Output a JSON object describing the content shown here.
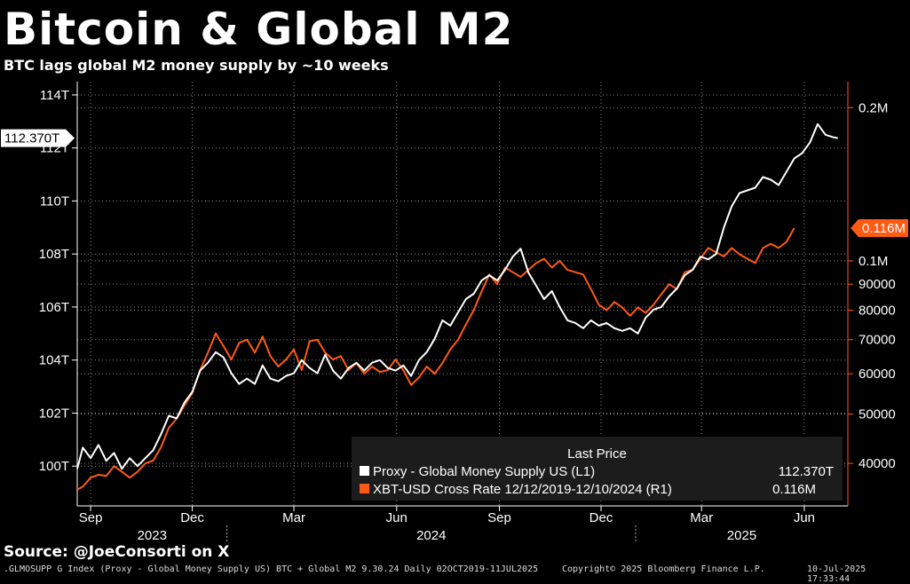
{
  "header": {
    "title": "Bitcoin & Global M2",
    "subtitle": "BTC lags global M2 money supply by ~10 weeks"
  },
  "footer": {
    "source": "Source:  @JoeConsorti on X",
    "index_line": ".GLMOSUPP G Index (Proxy - Global Money Supply US) BTC + Global M2 9.30.24  Daily 02OCT2019-11JUL2025",
    "copyright": "Copyright© 2025 Bloomberg Finance L.P.",
    "timestamp": "10-Jul-2025 17:33:44"
  },
  "colors": {
    "m2": "#ffffff",
    "btc": "#ff5a14",
    "background": "#000000",
    "legend_bg": "#1c1c1c"
  },
  "chart_data": {
    "type": "line",
    "x_tick_labels": [
      "Sep",
      "Dec",
      "Mar",
      "Jun",
      "Sep",
      "Dec",
      "Mar",
      "Jun"
    ],
    "x_tick_dates": [
      "2023-09-01",
      "2023-12-01",
      "2024-03-01",
      "2024-06-01",
      "2024-09-01",
      "2024-12-01",
      "2025-03-01",
      "2025-06-01"
    ],
    "x_year_labels": [
      "2023",
      "2024",
      "2025"
    ],
    "x_range": [
      "2023-08-20",
      "2025-07-10"
    ],
    "y_left": {
      "range": [
        98.5,
        114.5
      ],
      "ticks": [
        100,
        102,
        104,
        106,
        108,
        110,
        112,
        114
      ],
      "tick_labels": [
        "100T",
        "102T",
        "104T",
        "106T",
        "108T",
        "110T",
        "112T",
        "114T"
      ],
      "last_value_label": "112.370T"
    },
    "y_right": {
      "scale": "log",
      "range": [
        33000,
        225000
      ],
      "ticks": [
        40000,
        50000,
        60000,
        70000,
        80000,
        90000,
        100000,
        200000
      ],
      "tick_labels": [
        "40000",
        "50000",
        "60000",
        "70000",
        "80000",
        "90000",
        "0.1M",
        "0.2M"
      ],
      "last_value_label": "0.116M"
    },
    "grid": true,
    "legend": {
      "placement": "bottom-right",
      "header": "Last Price",
      "entries": [
        {
          "label": "Proxy - Global Money Supply US  (L1)",
          "value": "112.370T"
        },
        {
          "label": "XBT-USD Cross Rate 12/12/2019-12/10/2024   (R1)",
          "value": "0.116M"
        }
      ]
    },
    "series": [
      {
        "name": "Proxy - Global Money Supply US  (L1)",
        "axis": "left",
        "points": [
          [
            "2023-08-20",
            99.9
          ],
          [
            "2023-08-25",
            100.7
          ],
          [
            "2023-09-01",
            100.3
          ],
          [
            "2023-09-08",
            100.8
          ],
          [
            "2023-09-15",
            100.2
          ],
          [
            "2023-09-22",
            100.5
          ],
          [
            "2023-09-29",
            99.9
          ],
          [
            "2023-10-06",
            100.3
          ],
          [
            "2023-10-13",
            100.0
          ],
          [
            "2023-10-20",
            100.3
          ],
          [
            "2023-10-27",
            100.6
          ],
          [
            "2023-11-03",
            101.2
          ],
          [
            "2023-11-10",
            101.9
          ],
          [
            "2023-11-17",
            101.8
          ],
          [
            "2023-11-24",
            102.4
          ],
          [
            "2023-12-01",
            102.8
          ],
          [
            "2023-12-08",
            103.6
          ],
          [
            "2023-12-15",
            103.9
          ],
          [
            "2023-12-22",
            104.3
          ],
          [
            "2023-12-29",
            104.1
          ],
          [
            "2024-01-05",
            103.5
          ],
          [
            "2024-01-12",
            103.1
          ],
          [
            "2024-01-19",
            103.3
          ],
          [
            "2024-01-26",
            103.1
          ],
          [
            "2024-02-02",
            103.8
          ],
          [
            "2024-02-09",
            103.3
          ],
          [
            "2024-02-16",
            103.2
          ],
          [
            "2024-02-23",
            103.4
          ],
          [
            "2024-03-01",
            103.5
          ],
          [
            "2024-03-08",
            104.0
          ],
          [
            "2024-03-15",
            103.7
          ],
          [
            "2024-03-22",
            103.5
          ],
          [
            "2024-03-29",
            104.2
          ],
          [
            "2024-04-05",
            103.6
          ],
          [
            "2024-04-12",
            103.3
          ],
          [
            "2024-04-19",
            103.7
          ],
          [
            "2024-04-26",
            103.9
          ],
          [
            "2024-05-03",
            103.6
          ],
          [
            "2024-05-10",
            103.9
          ],
          [
            "2024-05-17",
            104.0
          ],
          [
            "2024-05-24",
            103.7
          ],
          [
            "2024-05-31",
            103.6
          ],
          [
            "2024-06-07",
            103.8
          ],
          [
            "2024-06-14",
            103.4
          ],
          [
            "2024-06-21",
            104.0
          ],
          [
            "2024-06-28",
            104.3
          ],
          [
            "2024-07-05",
            104.8
          ],
          [
            "2024-07-12",
            105.5
          ],
          [
            "2024-07-19",
            105.3
          ],
          [
            "2024-07-26",
            105.8
          ],
          [
            "2024-08-02",
            106.3
          ],
          [
            "2024-08-09",
            106.5
          ],
          [
            "2024-08-16",
            107.0
          ],
          [
            "2024-08-23",
            107.2
          ],
          [
            "2024-08-30",
            107.0
          ],
          [
            "2024-09-06",
            107.4
          ],
          [
            "2024-09-13",
            107.9
          ],
          [
            "2024-09-20",
            108.2
          ],
          [
            "2024-09-27",
            107.3
          ],
          [
            "2024-10-04",
            106.8
          ],
          [
            "2024-10-11",
            106.3
          ],
          [
            "2024-10-18",
            106.6
          ],
          [
            "2024-10-25",
            106.0
          ],
          [
            "2024-11-01",
            105.5
          ],
          [
            "2024-11-08",
            105.4
          ],
          [
            "2024-11-15",
            105.2
          ],
          [
            "2024-11-22",
            105.5
          ],
          [
            "2024-11-29",
            105.3
          ],
          [
            "2024-12-06",
            105.4
          ],
          [
            "2024-12-13",
            105.2
          ],
          [
            "2024-12-20",
            105.1
          ],
          [
            "2024-12-27",
            105.2
          ],
          [
            "2025-01-03",
            105.0
          ],
          [
            "2025-01-10",
            105.6
          ],
          [
            "2025-01-17",
            105.9
          ],
          [
            "2025-01-24",
            106.0
          ],
          [
            "2025-01-31",
            106.4
          ],
          [
            "2025-02-07",
            106.7
          ],
          [
            "2025-02-14",
            107.2
          ],
          [
            "2025-02-21",
            107.4
          ],
          [
            "2025-02-28",
            107.9
          ],
          [
            "2025-03-07",
            107.8
          ],
          [
            "2025-03-14",
            108.0
          ],
          [
            "2025-03-21",
            109.0
          ],
          [
            "2025-03-28",
            109.8
          ],
          [
            "2025-04-04",
            110.3
          ],
          [
            "2025-04-11",
            110.4
          ],
          [
            "2025-04-18",
            110.5
          ],
          [
            "2025-04-25",
            110.9
          ],
          [
            "2025-05-02",
            110.8
          ],
          [
            "2025-05-09",
            110.6
          ],
          [
            "2025-05-16",
            111.1
          ],
          [
            "2025-05-23",
            111.6
          ],
          [
            "2025-05-30",
            111.8
          ],
          [
            "2025-06-06",
            112.2
          ],
          [
            "2025-06-13",
            112.9
          ],
          [
            "2025-06-20",
            112.5
          ],
          [
            "2025-06-27",
            112.4
          ],
          [
            "2025-07-01",
            112.37
          ]
        ]
      },
      {
        "name": "XBT-USD Cross Rate 12/12/2019-12/10/2024   (R1)",
        "axis": "right",
        "points": [
          [
            "2023-08-20",
            35500
          ],
          [
            "2023-08-25",
            36000
          ],
          [
            "2023-09-01",
            37500
          ],
          [
            "2023-09-08",
            38000
          ],
          [
            "2023-09-15",
            37800
          ],
          [
            "2023-09-22",
            39500
          ],
          [
            "2023-09-29",
            38500
          ],
          [
            "2023-10-06",
            37500
          ],
          [
            "2023-10-13",
            38500
          ],
          [
            "2023-10-20",
            40000
          ],
          [
            "2023-10-27",
            40500
          ],
          [
            "2023-11-03",
            43000
          ],
          [
            "2023-11-10",
            47000
          ],
          [
            "2023-11-17",
            49000
          ],
          [
            "2023-11-24",
            52000
          ],
          [
            "2023-12-01",
            55000
          ],
          [
            "2023-12-08",
            61000
          ],
          [
            "2023-12-15",
            66000
          ],
          [
            "2023-12-22",
            72000
          ],
          [
            "2023-12-29",
            68000
          ],
          [
            "2024-01-05",
            64000
          ],
          [
            "2024-01-12",
            69000
          ],
          [
            "2024-01-19",
            70000
          ],
          [
            "2024-01-26",
            66000
          ],
          [
            "2024-02-02",
            71000
          ],
          [
            "2024-02-09",
            65000
          ],
          [
            "2024-02-16",
            62000
          ],
          [
            "2024-02-23",
            64000
          ],
          [
            "2024-03-01",
            67000
          ],
          [
            "2024-03-08",
            61000
          ],
          [
            "2024-03-15",
            69500
          ],
          [
            "2024-03-22",
            70000
          ],
          [
            "2024-03-29",
            66000
          ],
          [
            "2024-04-05",
            64000
          ],
          [
            "2024-04-12",
            65000
          ],
          [
            "2024-04-19",
            61000
          ],
          [
            "2024-04-26",
            63000
          ],
          [
            "2024-05-03",
            60000
          ],
          [
            "2024-05-10",
            62000
          ],
          [
            "2024-05-17",
            60500
          ],
          [
            "2024-05-24",
            61000
          ],
          [
            "2024-05-31",
            64000
          ],
          [
            "2024-06-07",
            61000
          ],
          [
            "2024-06-14",
            57000
          ],
          [
            "2024-06-21",
            59000
          ],
          [
            "2024-06-28",
            62000
          ],
          [
            "2024-07-05",
            60000
          ],
          [
            "2024-07-12",
            63000
          ],
          [
            "2024-07-19",
            67000
          ],
          [
            "2024-07-26",
            70000
          ],
          [
            "2024-08-02",
            75000
          ],
          [
            "2024-08-09",
            80000
          ],
          [
            "2024-08-16",
            87000
          ],
          [
            "2024-08-23",
            94000
          ],
          [
            "2024-08-30",
            90000
          ],
          [
            "2024-09-06",
            97000
          ],
          [
            "2024-09-13",
            95000
          ],
          [
            "2024-09-20",
            93000
          ],
          [
            "2024-09-27",
            96000
          ],
          [
            "2024-10-04",
            99000
          ],
          [
            "2024-10-11",
            101000
          ],
          [
            "2024-10-18",
            97000
          ],
          [
            "2024-10-25",
            100000
          ],
          [
            "2024-11-01",
            96000
          ],
          [
            "2024-11-08",
            95000
          ],
          [
            "2024-11-15",
            94000
          ],
          [
            "2024-11-22",
            88000
          ],
          [
            "2024-11-29",
            82000
          ],
          [
            "2024-12-06",
            80000
          ],
          [
            "2024-12-13",
            83000
          ],
          [
            "2024-12-20",
            81000
          ],
          [
            "2024-12-27",
            78000
          ],
          [
            "2025-01-03",
            81000
          ],
          [
            "2025-01-10",
            79000
          ],
          [
            "2025-01-17",
            82000
          ],
          [
            "2025-01-24",
            86000
          ],
          [
            "2025-01-31",
            90000
          ],
          [
            "2025-02-07",
            88000
          ],
          [
            "2025-02-14",
            95000
          ],
          [
            "2025-02-21",
            96000
          ],
          [
            "2025-02-28",
            101000
          ],
          [
            "2025-03-07",
            106000
          ],
          [
            "2025-03-14",
            104000
          ],
          [
            "2025-03-21",
            102000
          ],
          [
            "2025-03-28",
            106000
          ],
          [
            "2025-04-04",
            103000
          ],
          [
            "2025-04-11",
            101000
          ],
          [
            "2025-04-18",
            99000
          ],
          [
            "2025-04-25",
            106000
          ],
          [
            "2025-05-02",
            108000
          ],
          [
            "2025-05-09",
            106000
          ],
          [
            "2025-05-16",
            109000
          ],
          [
            "2025-05-23",
            116000
          ]
        ]
      }
    ]
  }
}
